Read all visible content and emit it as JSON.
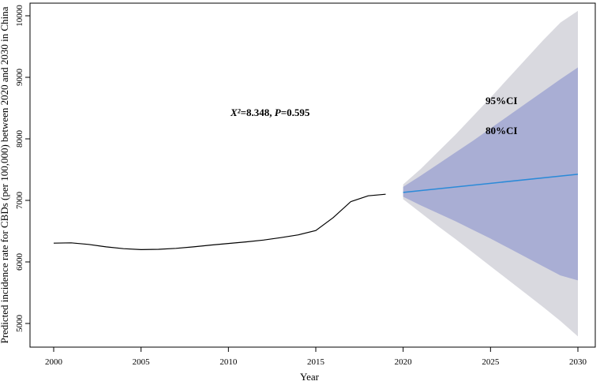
{
  "chart_data": {
    "type": "line",
    "title": "",
    "xlabel": "Year",
    "ylabel": "Predicted incidence rate for CBDs (per 100,000) between 2020 and 2030 in China",
    "xlim": [
      1999.5,
      2030.5
    ],
    "ylim": [
      4700,
      10200
    ],
    "x_ticks": [
      2000,
      2005,
      2010,
      2015,
      2020,
      2025,
      2030
    ],
    "y_ticks": [
      5000,
      6000,
      7000,
      8000,
      9000,
      10000
    ],
    "grid": false,
    "colors": {
      "observed": "#000000",
      "forecast": "#2b8ad8",
      "ci95": "#d9d9df",
      "ci80": "#a9aed4"
    },
    "series": [
      {
        "kind": "observed",
        "x": [
          2000,
          2001,
          2002,
          2003,
          2004,
          2005,
          2006,
          2007,
          2008,
          2009,
          2010,
          2011,
          2012,
          2013,
          2014,
          2015,
          2016,
          2017,
          2018,
          2019
        ],
        "y": [
          6305,
          6310,
          6285,
          6245,
          6215,
          6200,
          6205,
          6220,
          6245,
          6275,
          6300,
          6325,
          6355,
          6395,
          6440,
          6510,
          6720,
          6980,
          7075,
          7100
        ]
      },
      {
        "kind": "forecast",
        "x": [
          2020,
          2030
        ],
        "y": [
          7130,
          7425
        ]
      }
    ],
    "bands": [
      {
        "level": "95%",
        "x": [
          2020,
          2021,
          2022,
          2023,
          2024,
          2025,
          2026,
          2027,
          2028,
          2029,
          2030
        ],
        "lower": [
          7020,
          6800,
          6580,
          6370,
          6150,
          5930,
          5710,
          5490,
          5270,
          5040,
          4790
        ],
        "upper": [
          7260,
          7510,
          7790,
          8070,
          8370,
          8670,
          8980,
          9290,
          9600,
          9890,
          10080
        ]
      },
      {
        "level": "80%",
        "x": [
          2020,
          2021,
          2022,
          2023,
          2024,
          2025,
          2026,
          2027,
          2028,
          2029,
          2030
        ],
        "lower": [
          7060,
          6920,
          6790,
          6660,
          6520,
          6380,
          6230,
          6080,
          5930,
          5780,
          5700
        ],
        "upper": [
          7220,
          7400,
          7590,
          7780,
          7970,
          8170,
          8370,
          8570,
          8770,
          8970,
          9160
        ]
      }
    ],
    "annotations": {
      "stat_chi_label": "X²",
      "stat_chi_value": "=8.348, ",
      "stat_p_label": "P",
      "stat_p_value": "=0.595",
      "ci95_label": "95%CI",
      "ci80_label": "80%CI"
    }
  }
}
